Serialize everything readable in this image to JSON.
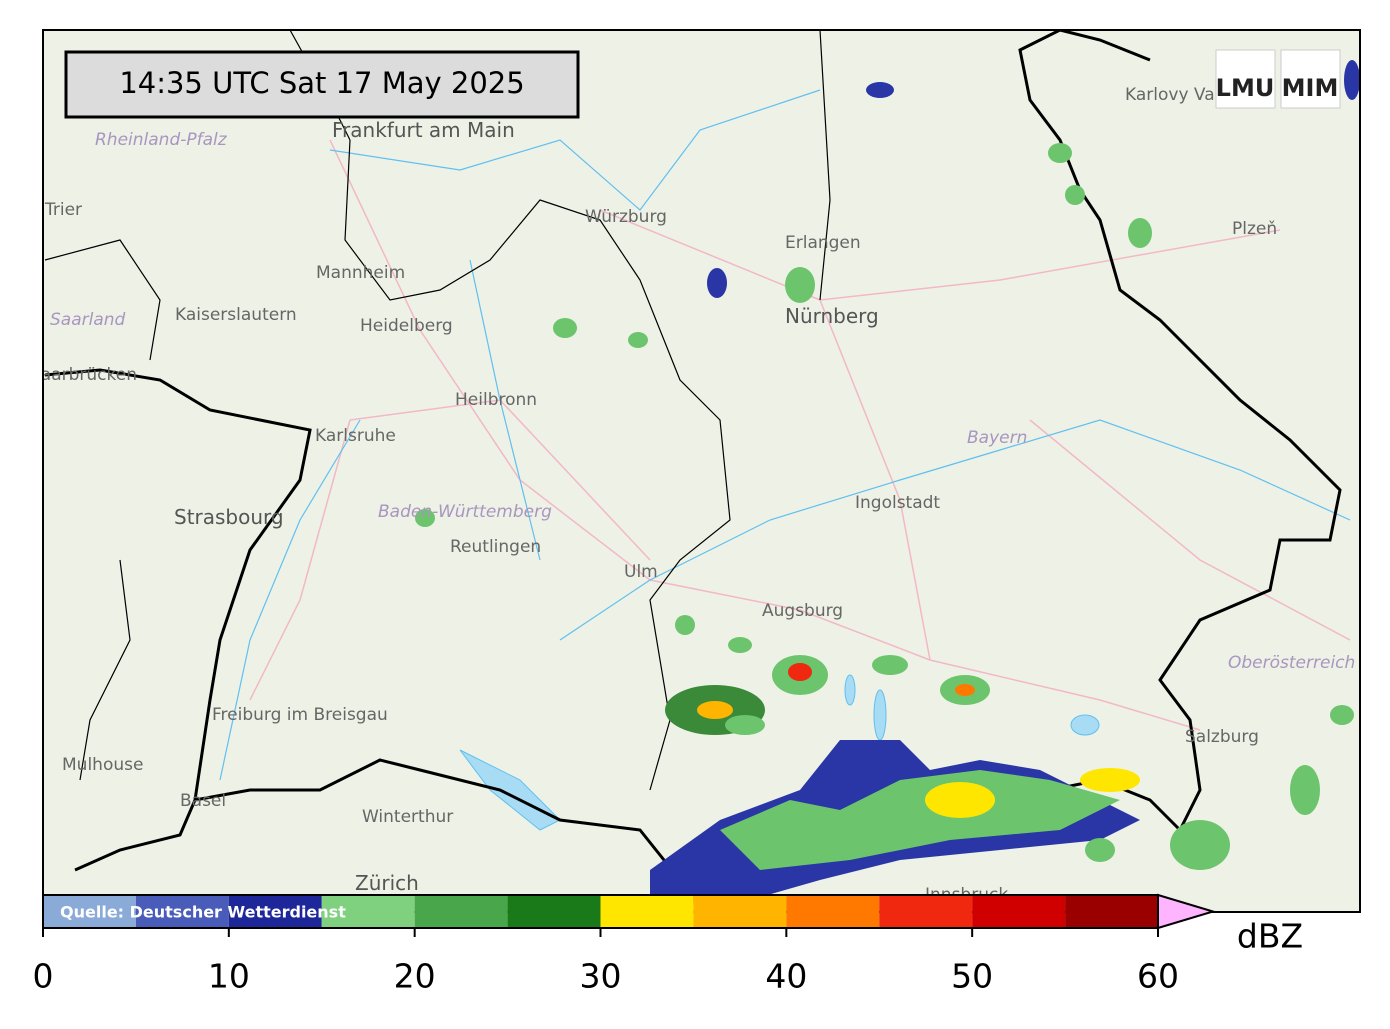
{
  "timestamp": "14:35 UTC  Sat 17 May 2025",
  "logos": [
    "LMU",
    "MIM"
  ],
  "source": "Quelle: Deutscher Wetterdienst",
  "colorbar": {
    "bounds": [
      0,
      5,
      10,
      15,
      20,
      25,
      30,
      35,
      40,
      45,
      50,
      55,
      60
    ],
    "colors": [
      "#8aaad8",
      "#4a5cba",
      "#1e279a",
      "#7fd07f",
      "#4aa64a",
      "#1a7a1a",
      "#ffe600",
      "#ffb400",
      "#ff7800",
      "#f02810",
      "#d00000",
      "#9a0000"
    ],
    "extend_color": "#ffb4ff",
    "ticks": [
      0,
      10,
      20,
      30,
      40,
      50,
      60
    ],
    "unit": "dBZ"
  },
  "places": [
    "Frankfurt am Main",
    "Rheinland-Pfalz",
    "Trier",
    "Mannheim",
    "Kaiserslautern",
    "Saarland",
    "Heidelberg",
    "Saarbrücken",
    "Karlsruhe",
    "Heilbronn",
    "Würzburg",
    "Erlangen",
    "Nürnberg",
    "Karlovy Vary",
    "Plzeň",
    "Bayern",
    "Ingolstadt",
    "Strasbourg",
    "Baden-Württemberg",
    "Reutlingen",
    "Ulm",
    "Augsburg",
    "Oberösterreich",
    "Freiburg im Breisgau",
    "Mulhouse",
    "Basel",
    "Winterthur",
    "Zürich",
    "Salzburg",
    "Innsbruck"
  ]
}
